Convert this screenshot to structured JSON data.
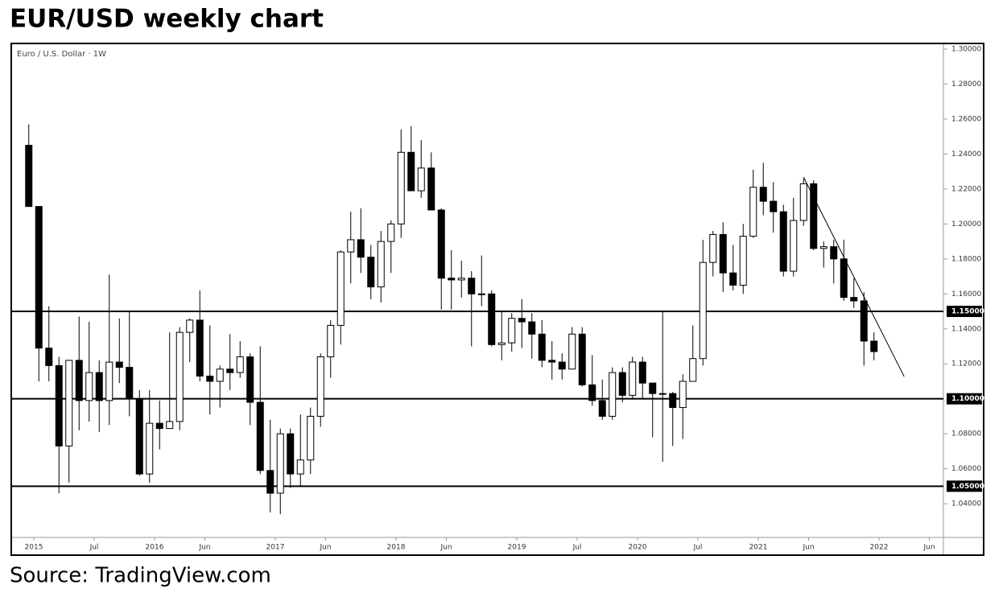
{
  "chart_data": {
    "type": "candlestick",
    "title": "EUR/USD weekly chart",
    "symbol_label": "Euro / U.S. Dollar · 1W",
    "source": "Source: TradingView.com",
    "up_color": "#ffffff",
    "down_color": "#000000",
    "grid": false,
    "x": [
      "2014-12",
      "2015-01",
      "2015-02",
      "2015-03",
      "2015-04",
      "2015-05",
      "2015-06",
      "2015-07",
      "2015-08",
      "2015-09",
      "2015-10",
      "2015-11",
      "2015-12",
      "2016-01",
      "2016-02",
      "2016-03",
      "2016-04",
      "2016-05",
      "2016-06",
      "2016-07",
      "2016-08",
      "2016-09",
      "2016-10",
      "2016-11",
      "2016-12",
      "2017-01",
      "2017-02",
      "2017-03",
      "2017-04",
      "2017-05",
      "2017-06",
      "2017-07",
      "2017-08",
      "2017-09",
      "2017-10",
      "2017-11",
      "2017-12",
      "2018-01",
      "2018-02",
      "2018-03",
      "2018-04",
      "2018-05",
      "2018-06",
      "2018-07",
      "2018-08",
      "2018-09",
      "2018-10",
      "2018-11",
      "2018-12",
      "2019-01",
      "2019-02",
      "2019-03",
      "2019-04",
      "2019-05",
      "2019-06",
      "2019-07",
      "2019-08",
      "2019-09",
      "2019-10",
      "2019-11",
      "2019-12",
      "2020-01",
      "2020-02",
      "2020-03",
      "2020-04",
      "2020-05",
      "2020-06",
      "2020-07",
      "2020-08",
      "2020-09",
      "2020-10",
      "2020-11",
      "2020-12",
      "2021-01",
      "2021-02",
      "2021-03",
      "2021-04",
      "2021-05",
      "2021-06",
      "2021-07",
      "2021-08",
      "2021-09",
      "2021-10",
      "2021-11",
      "2021-12"
    ],
    "open": [
      1.245,
      1.21,
      1.129,
      1.119,
      1.073,
      1.122,
      1.099,
      1.115,
      1.099,
      1.121,
      1.118,
      1.1,
      1.057,
      1.086,
      1.083,
      1.087,
      1.138,
      1.145,
      1.113,
      1.11,
      1.117,
      1.115,
      1.124,
      1.098,
      1.059,
      1.046,
      1.08,
      1.057,
      1.065,
      1.09,
      1.124,
      1.142,
      1.184,
      1.191,
      1.181,
      1.164,
      1.19,
      1.2,
      1.241,
      1.219,
      1.232,
      1.208,
      1.169,
      1.168,
      1.169,
      1.16,
      1.16,
      1.131,
      1.132,
      1.146,
      1.144,
      1.137,
      1.122,
      1.121,
      1.117,
      1.137,
      1.108,
      1.099,
      1.09,
      1.115,
      1.102,
      1.121,
      1.109,
      1.103,
      1.103,
      1.095,
      1.11,
      1.123,
      1.178,
      1.194,
      1.172,
      1.165,
      1.193,
      1.221,
      1.213,
      1.207,
      1.173,
      1.202,
      1.223,
      1.186,
      1.187,
      1.18,
      1.158,
      1.156,
      1.133
    ],
    "high": [
      1.257,
      1.21,
      1.153,
      1.124,
      1.122,
      1.147,
      1.144,
      1.122,
      1.171,
      1.146,
      1.15,
      1.105,
      1.105,
      1.099,
      1.138,
      1.141,
      1.146,
      1.162,
      1.142,
      1.119,
      1.137,
      1.133,
      1.126,
      1.13,
      1.088,
      1.083,
      1.083,
      1.091,
      1.095,
      1.126,
      1.145,
      1.185,
      1.207,
      1.209,
      1.188,
      1.196,
      1.202,
      1.254,
      1.256,
      1.248,
      1.241,
      1.209,
      1.185,
      1.179,
      1.173,
      1.182,
      1.162,
      1.15,
      1.149,
      1.157,
      1.149,
      1.145,
      1.133,
      1.126,
      1.141,
      1.141,
      1.125,
      1.111,
      1.118,
      1.118,
      1.124,
      1.124,
      1.109,
      1.15,
      1.104,
      1.114,
      1.142,
      1.191,
      1.196,
      1.201,
      1.188,
      1.2,
      1.231,
      1.235,
      1.224,
      1.211,
      1.215,
      1.226,
      1.225,
      1.19,
      1.191,
      1.191,
      1.169,
      1.161,
      1.138
    ],
    "low": [
      1.21,
      1.11,
      1.11,
      1.046,
      1.052,
      1.082,
      1.087,
      1.081,
      1.085,
      1.109,
      1.09,
      1.056,
      1.052,
      1.071,
      1.083,
      1.082,
      1.121,
      1.11,
      1.091,
      1.095,
      1.105,
      1.112,
      1.085,
      1.057,
      1.035,
      1.034,
      1.049,
      1.05,
      1.057,
      1.084,
      1.112,
      1.131,
      1.166,
      1.172,
      1.157,
      1.155,
      1.172,
      1.192,
      1.219,
      1.215,
      1.208,
      1.151,
      1.151,
      1.158,
      1.13,
      1.153,
      1.13,
      1.122,
      1.127,
      1.129,
      1.123,
      1.118,
      1.111,
      1.111,
      1.117,
      1.107,
      1.096,
      1.088,
      1.088,
      1.098,
      1.1,
      1.1,
      1.078,
      1.064,
      1.073,
      1.077,
      1.11,
      1.119,
      1.17,
      1.161,
      1.162,
      1.16,
      1.192,
      1.205,
      1.195,
      1.17,
      1.17,
      1.199,
      1.185,
      1.175,
      1.166,
      1.156,
      1.152,
      1.119,
      1.122
    ],
    "close": [
      1.21,
      1.129,
      1.119,
      1.073,
      1.122,
      1.099,
      1.115,
      1.099,
      1.121,
      1.118,
      1.1,
      1.057,
      1.086,
      1.083,
      1.087,
      1.138,
      1.145,
      1.113,
      1.11,
      1.117,
      1.115,
      1.124,
      1.098,
      1.059,
      1.046,
      1.08,
      1.057,
      1.065,
      1.09,
      1.124,
      1.142,
      1.184,
      1.191,
      1.181,
      1.164,
      1.19,
      1.2,
      1.241,
      1.219,
      1.232,
      1.208,
      1.169,
      1.168,
      1.169,
      1.16,
      1.16,
      1.131,
      1.132,
      1.146,
      1.144,
      1.137,
      1.122,
      1.121,
      1.117,
      1.137,
      1.108,
      1.099,
      1.09,
      1.115,
      1.102,
      1.121,
      1.109,
      1.103,
      1.103,
      1.095,
      1.11,
      1.123,
      1.178,
      1.194,
      1.172,
      1.165,
      1.193,
      1.221,
      1.213,
      1.207,
      1.173,
      1.202,
      1.223,
      1.186,
      1.187,
      1.18,
      1.158,
      1.156,
      1.133,
      1.127
    ],
    "xlim": [
      "2014-11",
      "2022-07"
    ],
    "xticks": [
      {
        "value": "2015-01",
        "label": "2015"
      },
      {
        "value": "2015-07",
        "label": "Jul"
      },
      {
        "value": "2016-01",
        "label": "2016"
      },
      {
        "value": "2016-06",
        "label": "Jun"
      },
      {
        "value": "2017-01",
        "label": "2017"
      },
      {
        "value": "2017-06",
        "label": "Jun"
      },
      {
        "value": "2018-01",
        "label": "2018"
      },
      {
        "value": "2018-06",
        "label": "Jun"
      },
      {
        "value": "2019-01",
        "label": "2019"
      },
      {
        "value": "2019-07",
        "label": "Jul"
      },
      {
        "value": "2020-01",
        "label": "2020"
      },
      {
        "value": "2020-07",
        "label": "Jul"
      },
      {
        "value": "2021-01",
        "label": "2021"
      },
      {
        "value": "2021-06",
        "label": "Jun"
      },
      {
        "value": "2022-01",
        "label": "2022"
      },
      {
        "value": "2022-06",
        "label": "Jun"
      }
    ],
    "ylim": [
      1.0207,
      1.3028
    ],
    "yticks": [
      {
        "value": 1.3,
        "label": "1.30000"
      },
      {
        "value": 1.28,
        "label": "1.28000"
      },
      {
        "value": 1.26,
        "label": "1.26000"
      },
      {
        "value": 1.24,
        "label": "1.24000"
      },
      {
        "value": 1.22,
        "label": "1.22000"
      },
      {
        "value": 1.2,
        "label": "1.20000"
      },
      {
        "value": 1.18,
        "label": "1.18000"
      },
      {
        "value": 1.16,
        "label": "1.16000"
      },
      {
        "value": 1.14,
        "label": "1.14000"
      },
      {
        "value": 1.12,
        "label": "1.12000"
      },
      {
        "value": 1.08,
        "label": "1.08000"
      },
      {
        "value": 1.06,
        "label": "1.06000"
      },
      {
        "value": 1.04,
        "label": "1.04000"
      }
    ],
    "levels": [
      {
        "value": 1.15,
        "label": "1.15000"
      },
      {
        "value": 1.1,
        "label": "1.10000"
      },
      {
        "value": 1.05,
        "label": "1.05000"
      }
    ],
    "trendline": {
      "x": [
        "2021-05",
        "2022-03"
      ],
      "y": [
        1.2268,
        1.1127
      ]
    }
  }
}
